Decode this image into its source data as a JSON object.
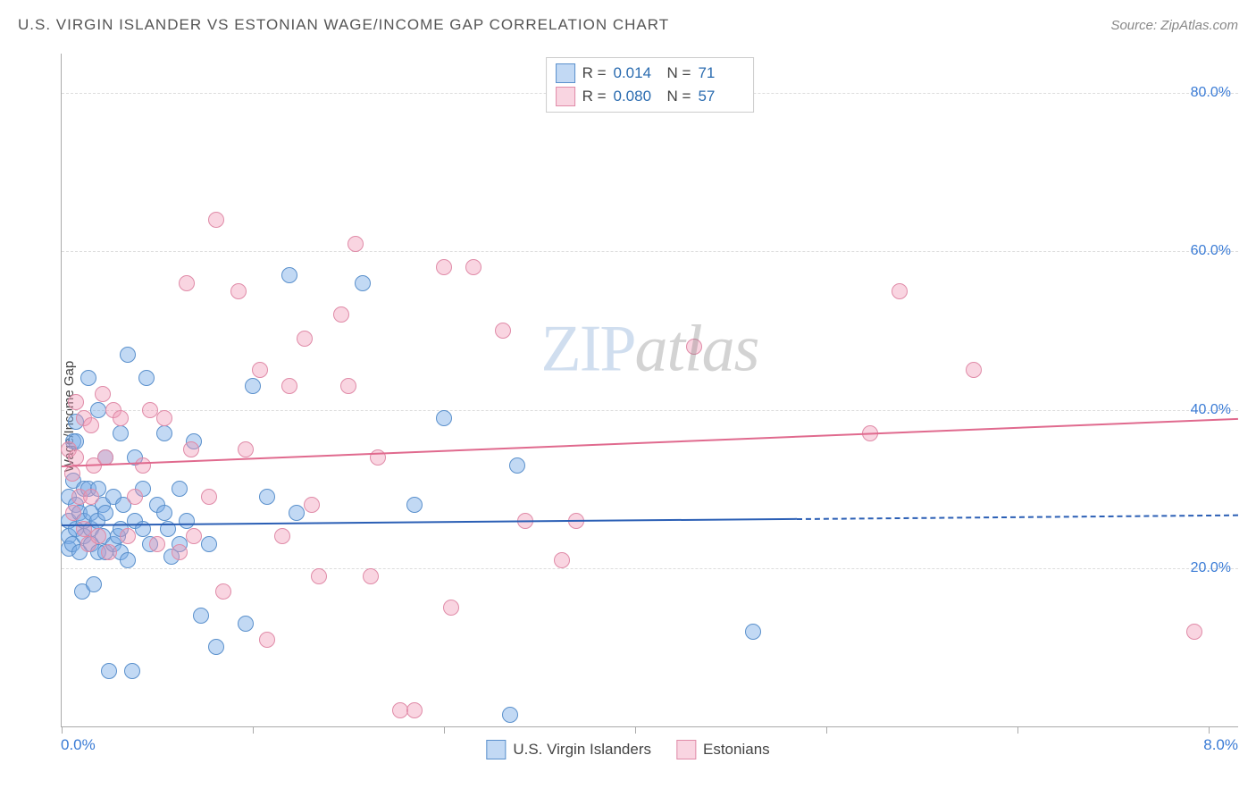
{
  "header": {
    "title": "U.S. VIRGIN ISLANDER VS ESTONIAN WAGE/INCOME GAP CORRELATION CHART",
    "source": "Source: ZipAtlas.com"
  },
  "watermark": {
    "left": "ZIP",
    "right": "atlas"
  },
  "chart": {
    "type": "scatter",
    "ylabel": "Wage/Income Gap",
    "background_color": "#ffffff",
    "grid_color": "#dddddd",
    "axis_color": "#aaaaaa",
    "xlim": [
      0,
      8
    ],
    "ylim": [
      0,
      85
    ],
    "x_axis": {
      "start_label": "0.0%",
      "end_label": "8.0%",
      "tick_positions": [
        0,
        1.3,
        2.6,
        3.9,
        5.2,
        6.5,
        7.8
      ],
      "label_color": "#3a7bd5",
      "label_fontsize": 17
    },
    "y_axis": {
      "ticks": [
        {
          "value": 20,
          "label": "20.0%"
        },
        {
          "value": 40,
          "label": "40.0%"
        },
        {
          "value": 60,
          "label": "60.0%"
        },
        {
          "value": 80,
          "label": "80.0%"
        }
      ],
      "label_color": "#3a7bd5",
      "label_fontsize": 16
    },
    "series": [
      {
        "name": "U.S. Virgin Islanders",
        "marker_fill": "rgba(120,170,230,0.45)",
        "marker_stroke": "#5a90cc",
        "marker_radius": 9,
        "line_color": "#2b5fb5",
        "line_width": 2,
        "trend": {
          "x1": 0,
          "y1": 25.5,
          "x2": 8,
          "y2": 26.8,
          "solid_until_x": 5.0
        },
        "R": "0.014",
        "N": "71",
        "points": [
          [
            0.05,
            29
          ],
          [
            0.05,
            26
          ],
          [
            0.05,
            24
          ],
          [
            0.05,
            22.5
          ],
          [
            0.07,
            23
          ],
          [
            0.08,
            36
          ],
          [
            0.08,
            31
          ],
          [
            0.1,
            38.5
          ],
          [
            0.1,
            36
          ],
          [
            0.1,
            28
          ],
          [
            0.1,
            25
          ],
          [
            0.12,
            22
          ],
          [
            0.12,
            27
          ],
          [
            0.14,
            17
          ],
          [
            0.15,
            24
          ],
          [
            0.15,
            26
          ],
          [
            0.15,
            30
          ],
          [
            0.18,
            30
          ],
          [
            0.18,
            44
          ],
          [
            0.2,
            27
          ],
          [
            0.2,
            25
          ],
          [
            0.2,
            23
          ],
          [
            0.22,
            18
          ],
          [
            0.24,
            26
          ],
          [
            0.25,
            30
          ],
          [
            0.25,
            22
          ],
          [
            0.25,
            40
          ],
          [
            0.28,
            24
          ],
          [
            0.28,
            28
          ],
          [
            0.3,
            34
          ],
          [
            0.3,
            27
          ],
          [
            0.3,
            22
          ],
          [
            0.32,
            7
          ],
          [
            0.35,
            23
          ],
          [
            0.35,
            29
          ],
          [
            0.38,
            24
          ],
          [
            0.4,
            37
          ],
          [
            0.4,
            25
          ],
          [
            0.4,
            22
          ],
          [
            0.42,
            28
          ],
          [
            0.45,
            47
          ],
          [
            0.45,
            21
          ],
          [
            0.48,
            7
          ],
          [
            0.5,
            34
          ],
          [
            0.5,
            26
          ],
          [
            0.55,
            30
          ],
          [
            0.55,
            25
          ],
          [
            0.58,
            44
          ],
          [
            0.6,
            23
          ],
          [
            0.65,
            28
          ],
          [
            0.7,
            37
          ],
          [
            0.7,
            27
          ],
          [
            0.72,
            25
          ],
          [
            0.75,
            21.5
          ],
          [
            0.8,
            30
          ],
          [
            0.8,
            23
          ],
          [
            0.85,
            26
          ],
          [
            0.9,
            36
          ],
          [
            0.95,
            14
          ],
          [
            1.0,
            23
          ],
          [
            1.05,
            10
          ],
          [
            1.25,
            13
          ],
          [
            1.3,
            43
          ],
          [
            1.4,
            29
          ],
          [
            1.55,
            57
          ],
          [
            1.6,
            27
          ],
          [
            2.05,
            56
          ],
          [
            2.4,
            28
          ],
          [
            2.6,
            39
          ],
          [
            3.05,
            1.5
          ],
          [
            3.1,
            33
          ],
          [
            4.7,
            12
          ]
        ]
      },
      {
        "name": "Estonians",
        "marker_fill": "rgba(240,150,180,0.4)",
        "marker_stroke": "#e08ba8",
        "marker_radius": 9,
        "line_color": "#e06a8e",
        "line_width": 2,
        "trend": {
          "x1": 0,
          "y1": 33,
          "x2": 8,
          "y2": 39,
          "solid_until_x": 8.0
        },
        "R": "0.080",
        "N": "57",
        "points": [
          [
            0.05,
            35
          ],
          [
            0.07,
            32
          ],
          [
            0.08,
            27
          ],
          [
            0.1,
            34
          ],
          [
            0.1,
            41
          ],
          [
            0.12,
            29
          ],
          [
            0.15,
            25
          ],
          [
            0.15,
            39
          ],
          [
            0.18,
            23
          ],
          [
            0.2,
            38
          ],
          [
            0.2,
            29
          ],
          [
            0.22,
            33
          ],
          [
            0.25,
            24
          ],
          [
            0.28,
            42
          ],
          [
            0.3,
            34
          ],
          [
            0.32,
            22
          ],
          [
            0.35,
            40
          ],
          [
            0.4,
            39
          ],
          [
            0.45,
            24
          ],
          [
            0.5,
            29
          ],
          [
            0.55,
            33
          ],
          [
            0.6,
            40
          ],
          [
            0.65,
            23
          ],
          [
            0.7,
            39
          ],
          [
            0.8,
            22
          ],
          [
            0.85,
            56
          ],
          [
            0.88,
            35
          ],
          [
            0.9,
            24
          ],
          [
            1.0,
            29
          ],
          [
            1.05,
            64
          ],
          [
            1.1,
            17
          ],
          [
            1.2,
            55
          ],
          [
            1.25,
            35
          ],
          [
            1.35,
            45
          ],
          [
            1.4,
            11
          ],
          [
            1.5,
            24
          ],
          [
            1.55,
            43
          ],
          [
            1.65,
            49
          ],
          [
            1.7,
            28
          ],
          [
            1.75,
            19
          ],
          [
            1.9,
            52
          ],
          [
            1.95,
            43
          ],
          [
            2.0,
            61
          ],
          [
            2.1,
            19
          ],
          [
            2.15,
            34
          ],
          [
            2.3,
            2
          ],
          [
            2.4,
            2
          ],
          [
            2.6,
            58
          ],
          [
            2.65,
            15
          ],
          [
            2.8,
            58
          ],
          [
            3.0,
            50
          ],
          [
            3.15,
            26
          ],
          [
            3.4,
            21
          ],
          [
            3.5,
            26
          ],
          [
            4.3,
            48
          ],
          [
            5.5,
            37
          ],
          [
            5.7,
            55
          ],
          [
            6.2,
            45
          ],
          [
            7.7,
            12
          ]
        ]
      }
    ],
    "legend_bottom": [
      {
        "label": "U.S. Virgin Islanders",
        "fill": "rgba(120,170,230,0.45)",
        "stroke": "#5a90cc"
      },
      {
        "label": "Estonians",
        "fill": "rgba(240,150,180,0.4)",
        "stroke": "#e08ba8"
      }
    ]
  }
}
